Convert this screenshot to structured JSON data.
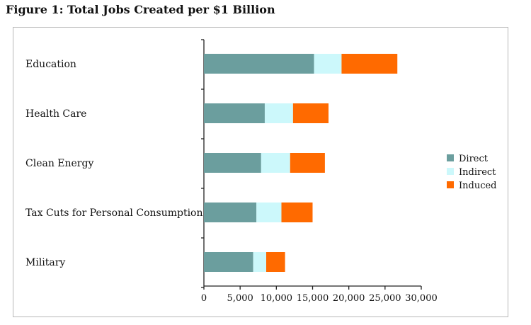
{
  "figure_title": "Figure 1: Total Jobs Created per $1 Billion",
  "chart_data": {
    "type": "bar",
    "orientation": "horizontal",
    "stacked": true,
    "title": "",
    "xlabel": "",
    "ylabel": "",
    "categories": [
      "Education",
      "Health Care",
      "Clean Energy",
      "Tax Cuts for Personal Consumption",
      "Military"
    ],
    "series": [
      {
        "name": "Direct",
        "color": "#6b9e9e",
        "values": [
          15200,
          8400,
          7900,
          7250,
          6800
        ]
      },
      {
        "name": "Indirect",
        "color": "#ccf8fb",
        "values": [
          3800,
          3900,
          4000,
          3450,
          1800
        ]
      },
      {
        "name": "Induced",
        "color": "#ff6a00",
        "values": [
          7700,
          4900,
          4800,
          4300,
          2600
        ]
      }
    ],
    "xlim": [
      0,
      30000
    ],
    "xticks": [
      0,
      5000,
      10000,
      15000,
      20000,
      25000,
      30000
    ],
    "xtick_labels": [
      "0",
      "5,000",
      "10,000",
      "15,000",
      "20,000",
      "25,000",
      "30,000"
    ],
    "legend_position": "right",
    "grid": false
  }
}
